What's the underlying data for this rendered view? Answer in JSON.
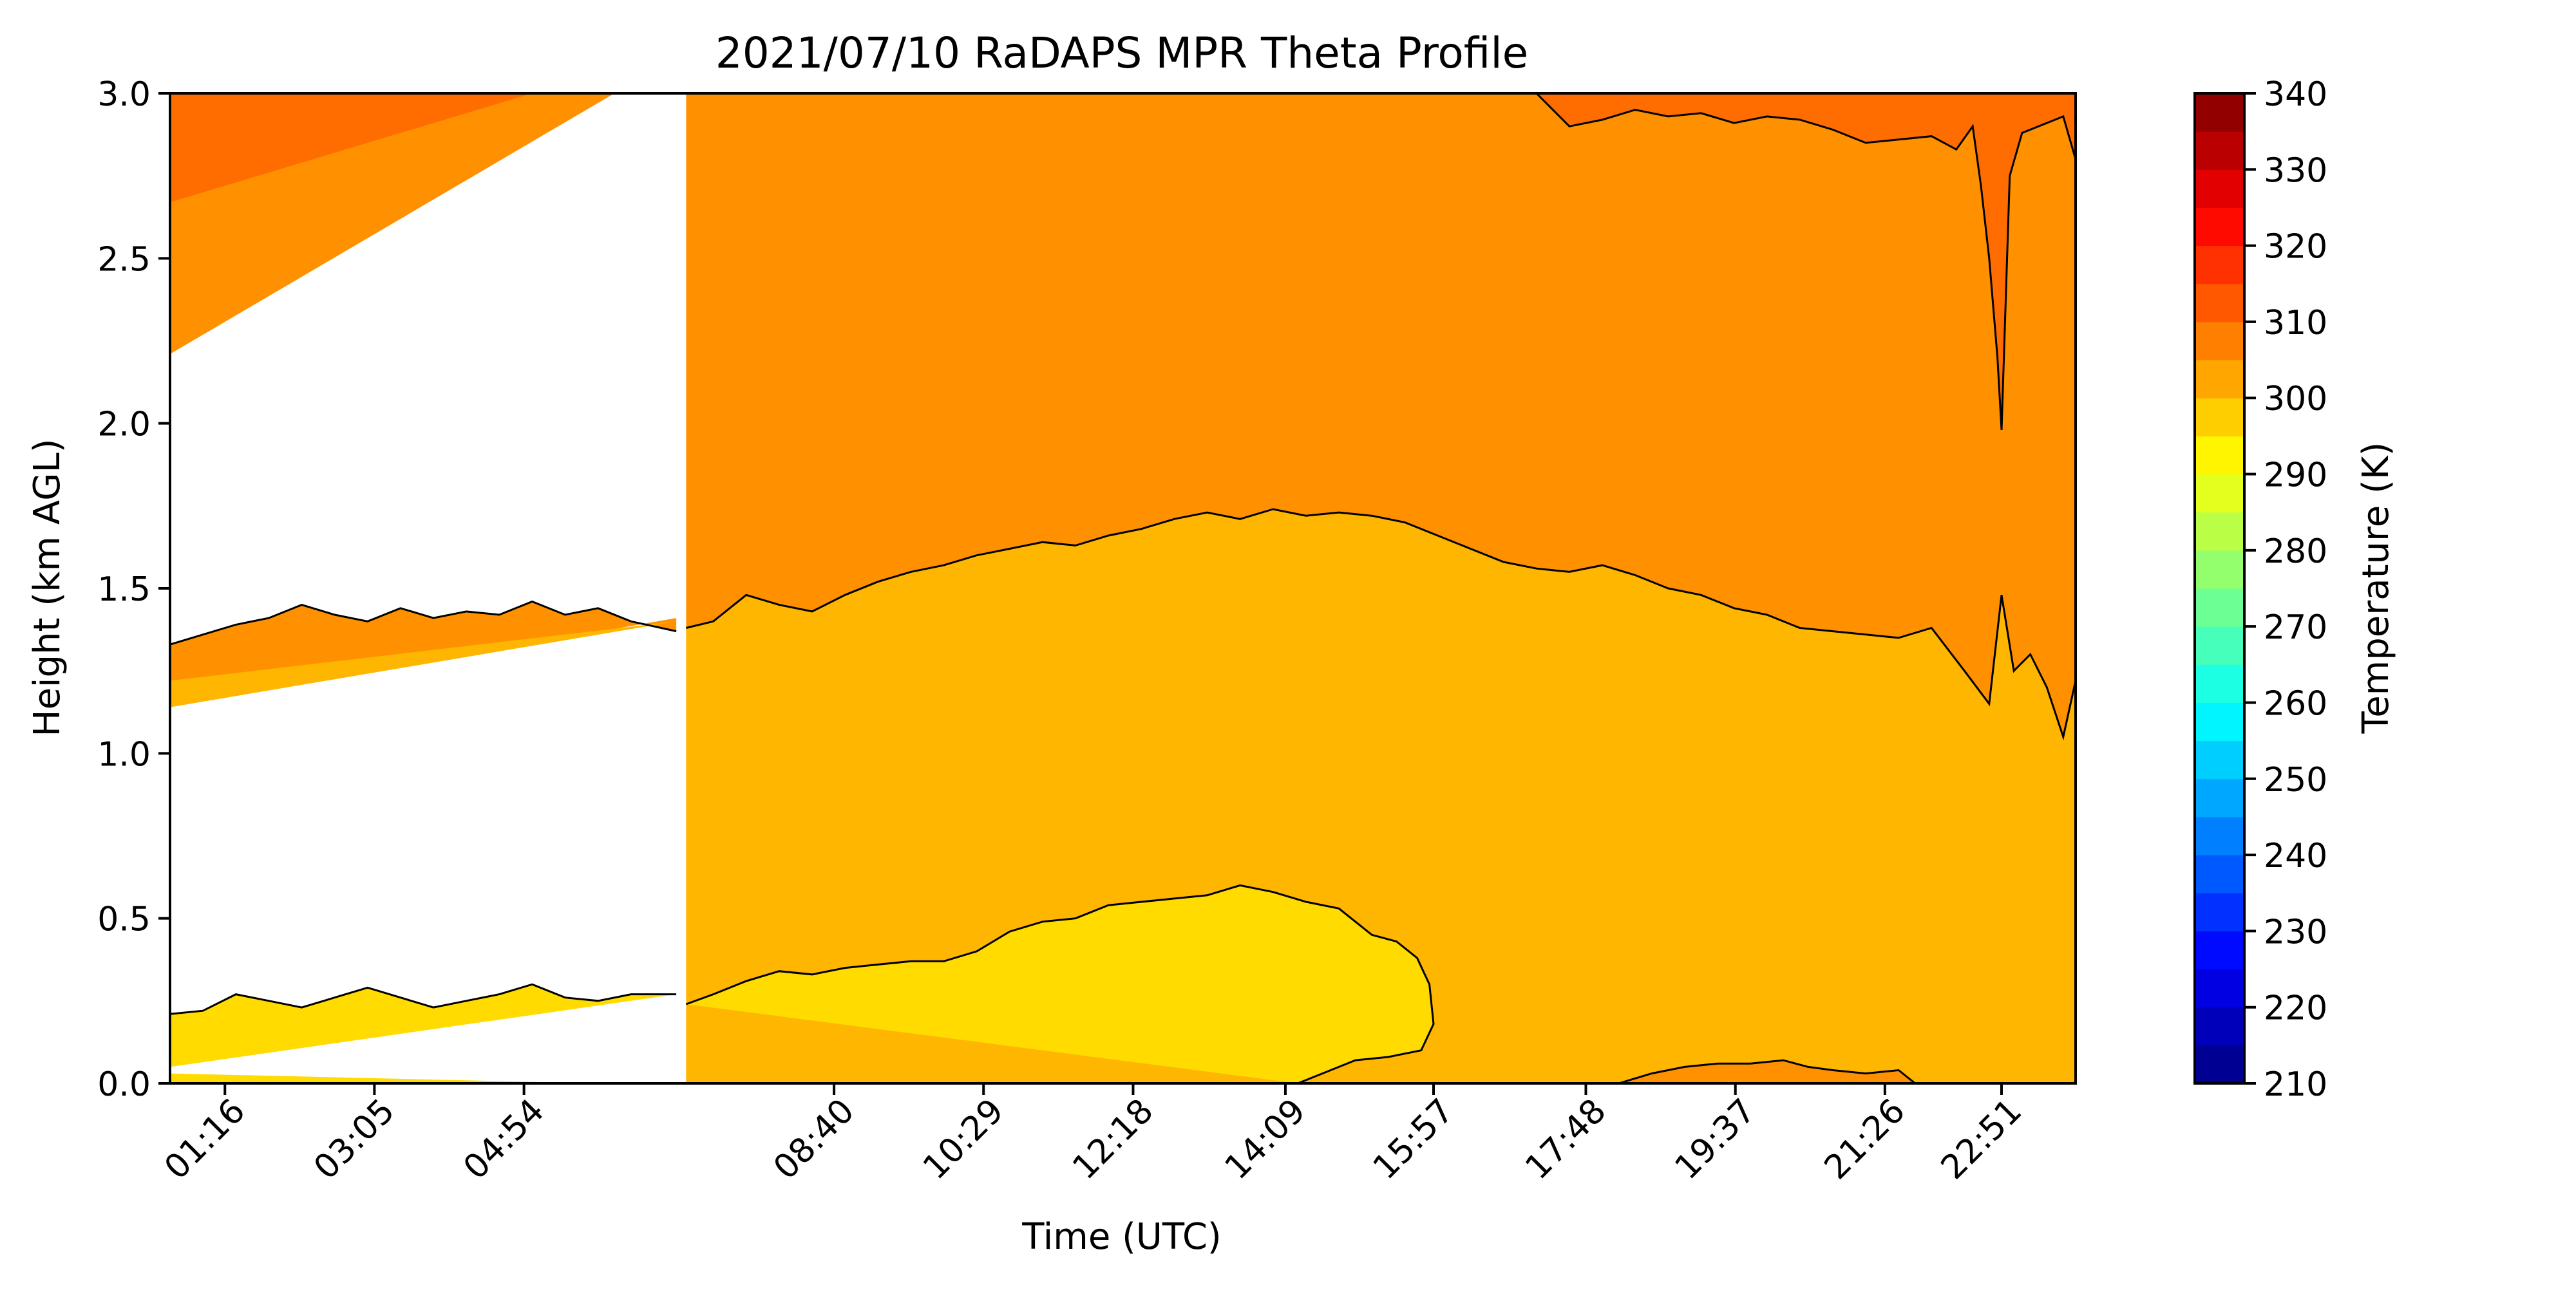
{
  "chart_data": {
    "type": "heatmap",
    "subtype": "filled-contour",
    "title": "2021/07/10 RaDAPS MPR Theta Profile",
    "xlabel": "Time (UTC)",
    "ylabel": "Height (km AGL)",
    "x_tick_labels": [
      "01:16",
      "03:05",
      "04:54",
      "08:40",
      "10:29",
      "12:18",
      "14:09",
      "15:57",
      "17:48",
      "19:37",
      "21:26",
      "22:51"
    ],
    "x_ticks_hours": [
      1.267,
      3.083,
      4.9,
      8.667,
      10.483,
      12.3,
      14.15,
      15.95,
      17.8,
      19.617,
      21.433,
      22.85
    ],
    "xlim_hours": [
      0.6,
      23.75
    ],
    "data_gap_hours": [
      6.75,
      6.87
    ],
    "ylim": [
      0,
      3.0
    ],
    "y_ticks": [
      0.0,
      0.5,
      1.0,
      1.5,
      2.0,
      2.5,
      3.0
    ],
    "y_tick_labels": [
      "0.0",
      "0.5",
      "1.0",
      "1.5",
      "2.0",
      "2.5",
      "3.0"
    ],
    "colorbar": {
      "label": "Temperature (K)",
      "range": [
        210,
        340
      ],
      "step": 5,
      "tick_values": [
        210,
        220,
        230,
        240,
        250,
        260,
        270,
        280,
        290,
        300,
        310,
        320,
        330,
        340
      ],
      "tick_labels": [
        "210",
        "220",
        "230",
        "240",
        "250",
        "260",
        "270",
        "280",
        "290",
        "300",
        "310",
        "320",
        "330",
        "340"
      ],
      "colormap": "jet"
    },
    "contour_lines_K": [
      300,
      305,
      310
    ],
    "bands": [
      {
        "range_K": [
          295,
          300
        ],
        "color": "#ffdb00"
      },
      {
        "range_K": [
          300,
          305
        ],
        "color": "#ffb600"
      },
      {
        "range_K": [
          305,
          310
        ],
        "color": "#ff9100"
      },
      {
        "range_K": [
          310,
          315
        ],
        "color": "#ff6d00"
      }
    ],
    "isolines": [
      {
        "level_K": 300,
        "t": [
          0.6,
          1.0,
          1.4,
          1.8,
          2.2,
          2.6,
          3.0,
          3.4,
          3.8,
          4.2,
          4.6,
          5.0,
          5.4,
          5.8,
          6.2,
          6.75,
          6.87,
          7.2,
          7.6,
          8.0,
          8.4,
          8.8,
          9.2,
          9.6,
          10.0,
          10.4,
          10.8,
          11.2,
          11.6,
          12.0,
          12.4,
          12.8,
          13.2,
          13.6,
          14.0,
          14.4,
          14.8,
          15.2,
          15.5,
          15.75,
          15.9,
          15.95,
          15.8,
          15.4,
          15.0,
          14.6,
          14.3
        ],
        "h": [
          0.21,
          0.22,
          0.27,
          0.25,
          0.23,
          0.26,
          0.29,
          0.26,
          0.23,
          0.25,
          0.27,
          0.3,
          0.26,
          0.25,
          0.27,
          0.27,
          0.24,
          0.27,
          0.31,
          0.34,
          0.33,
          0.35,
          0.36,
          0.37,
          0.37,
          0.4,
          0.46,
          0.49,
          0.5,
          0.54,
          0.55,
          0.56,
          0.57,
          0.6,
          0.58,
          0.55,
          0.53,
          0.45,
          0.43,
          0.38,
          0.3,
          0.18,
          0.1,
          0.08,
          0.07,
          0.03,
          0.0
        ]
      },
      {
        "level_K": 305,
        "t": [
          0.6,
          1.0,
          1.4,
          1.8,
          2.2,
          2.6,
          3.0,
          3.4,
          3.8,
          4.2,
          4.6,
          5.0,
          5.4,
          5.8,
          6.2,
          6.75,
          6.87,
          7.2,
          7.6,
          8.0,
          8.4,
          8.8,
          9.2,
          9.6,
          10.0,
          10.4,
          10.8,
          11.2,
          11.6,
          12.0,
          12.4,
          12.8,
          13.2,
          13.6,
          14.0,
          14.4,
          14.8,
          15.2,
          15.6,
          16.0,
          16.4,
          16.8,
          17.2,
          17.6,
          18.0,
          18.4,
          18.8,
          19.2,
          19.6,
          20.0,
          20.4,
          20.8,
          21.2,
          21.6,
          22.0,
          22.4,
          22.7,
          22.85,
          23.0,
          23.2,
          23.4,
          23.6,
          23.75
        ],
        "h": [
          1.33,
          1.36,
          1.39,
          1.41,
          1.45,
          1.42,
          1.4,
          1.44,
          1.41,
          1.43,
          1.42,
          1.46,
          1.42,
          1.44,
          1.4,
          1.37,
          1.38,
          1.4,
          1.48,
          1.45,
          1.43,
          1.48,
          1.52,
          1.55,
          1.57,
          1.6,
          1.62,
          1.64,
          1.63,
          1.66,
          1.68,
          1.71,
          1.73,
          1.71,
          1.74,
          1.72,
          1.73,
          1.72,
          1.7,
          1.66,
          1.62,
          1.58,
          1.56,
          1.55,
          1.57,
          1.54,
          1.5,
          1.48,
          1.44,
          1.42,
          1.38,
          1.37,
          1.36,
          1.35,
          1.38,
          1.25,
          1.15,
          1.48,
          1.25,
          1.3,
          1.2,
          1.05,
          1.22
        ]
      },
      {
        "level_K": 310,
        "t": [
          17.2,
          17.6,
          18.0,
          18.4,
          18.8,
          19.2,
          19.6,
          20.0,
          20.4,
          20.8,
          21.2,
          21.6,
          22.0,
          22.3,
          22.5,
          22.6,
          22.7,
          22.8,
          22.85,
          22.95,
          23.1,
          23.4,
          23.6,
          23.75
        ],
        "h": [
          3.0,
          2.9,
          2.92,
          2.95,
          2.93,
          2.94,
          2.91,
          2.93,
          2.92,
          2.89,
          2.85,
          2.86,
          2.87,
          2.83,
          2.9,
          2.72,
          2.5,
          2.2,
          1.98,
          2.75,
          2.88,
          2.91,
          2.93,
          2.8
        ]
      },
      {
        "level_K": 305,
        "t": [
          18.2,
          18.6,
          19.0,
          19.4,
          19.8,
          20.2,
          20.5,
          20.8,
          21.2,
          21.6,
          21.8
        ],
        "h": [
          0.0,
          0.03,
          0.05,
          0.06,
          0.06,
          0.07,
          0.05,
          0.04,
          0.03,
          0.04,
          0.0
        ]
      }
    ]
  }
}
